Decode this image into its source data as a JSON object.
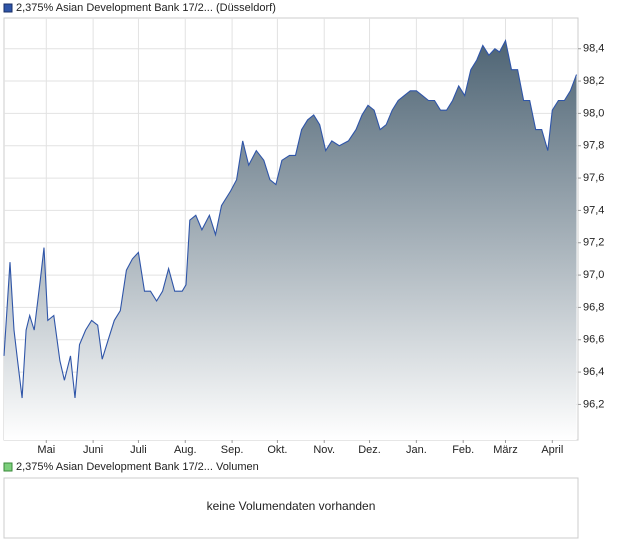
{
  "chart_data": {
    "type": "area",
    "xlim": [
      0,
      380
    ],
    "xticks": [
      {
        "value": 28,
        "label": "Mai"
      },
      {
        "value": 59,
        "label": "Juni"
      },
      {
        "value": 89,
        "label": "Juli"
      },
      {
        "value": 120,
        "label": "Aug."
      },
      {
        "value": 151,
        "label": "Sep."
      },
      {
        "value": 181,
        "label": "Okt."
      },
      {
        "value": 212,
        "label": "Nov."
      },
      {
        "value": 242,
        "label": "Dez."
      },
      {
        "value": 273,
        "label": "Jan."
      },
      {
        "value": 304,
        "label": "Feb."
      },
      {
        "value": 332,
        "label": "März"
      },
      {
        "value": 363,
        "label": "April"
      }
    ],
    "ylim": [
      95.98,
      98.59
    ],
    "yticks": [
      {
        "value": 96.2,
        "label": "96,2"
      },
      {
        "value": 96.4,
        "label": "96,4"
      },
      {
        "value": 96.6,
        "label": "96,6"
      },
      {
        "value": 96.8,
        "label": "96,8"
      },
      {
        "value": 97.0,
        "label": "97,0"
      },
      {
        "value": 97.2,
        "label": "97,2"
      },
      {
        "value": 97.4,
        "label": "97,4"
      },
      {
        "value": 97.6,
        "label": "97,6"
      },
      {
        "value": 97.8,
        "label": "97,8"
      },
      {
        "value": 98.0,
        "label": "98,0"
      },
      {
        "value": 98.2,
        "label": "98,2"
      },
      {
        "value": 98.4,
        "label": "98,4"
      }
    ],
    "grid": true,
    "x": [
      0,
      4,
      6.6,
      9,
      12,
      14.6,
      17,
      20,
      24,
      26.5,
      29,
      33,
      37,
      40,
      44,
      47,
      50,
      54,
      58,
      62,
      65,
      69,
      73,
      77,
      81,
      85,
      89,
      93,
      97,
      101,
      105,
      109,
      113,
      118,
      120.5,
      123,
      127,
      131,
      136,
      140,
      144,
      150,
      154,
      158,
      162,
      167,
      172,
      176,
      180,
      184,
      189,
      193,
      197,
      201,
      205,
      209,
      213,
      217,
      222,
      228,
      233,
      237,
      241,
      245,
      249,
      253,
      257,
      261,
      265,
      269,
      273,
      277,
      281,
      285,
      289,
      293,
      297,
      301,
      305,
      309,
      313,
      317,
      321,
      325,
      328,
      332,
      336,
      340,
      344,
      348,
      352,
      356,
      360,
      363,
      367,
      371,
      375,
      379
    ],
    "series": [
      {
        "name": "2,375% Asian Development Bank 17/2... (Düsseldorf)",
        "color": "#2f55a8",
        "values": [
          96.5,
          97.08,
          96.66,
          96.47,
          96.24,
          96.66,
          96.75,
          96.66,
          96.97,
          97.17,
          96.72,
          96.75,
          96.47,
          96.35,
          96.5,
          96.24,
          96.57,
          96.66,
          96.72,
          96.69,
          96.48,
          96.6,
          96.72,
          96.78,
          97.03,
          97.1,
          97.14,
          96.9,
          96.9,
          96.84,
          96.9,
          97.04,
          96.9,
          96.9,
          96.94,
          97.34,
          97.37,
          97.28,
          97.37,
          97.25,
          97.43,
          97.52,
          97.59,
          97.83,
          97.68,
          97.77,
          97.71,
          97.59,
          97.56,
          97.71,
          97.74,
          97.74,
          97.9,
          97.96,
          97.99,
          97.93,
          97.77,
          97.83,
          97.8,
          97.83,
          97.9,
          97.99,
          98.05,
          98.02,
          97.9,
          97.93,
          98.02,
          98.08,
          98.11,
          98.14,
          98.14,
          98.11,
          98.08,
          98.08,
          98.02,
          98.02,
          98.08,
          98.17,
          98.11,
          98.27,
          98.33,
          98.42,
          98.36,
          98.4,
          98.38,
          98.45,
          98.27,
          98.27,
          98.08,
          98.08,
          97.9,
          97.9,
          97.77,
          98.02,
          98.08,
          98.08,
          98.14,
          98.24
        ]
      }
    ],
    "volume_legend": "2,375% Asian Development Bank 17/2... Volumen",
    "volume_message": "keine Volumendaten vorhanden"
  }
}
